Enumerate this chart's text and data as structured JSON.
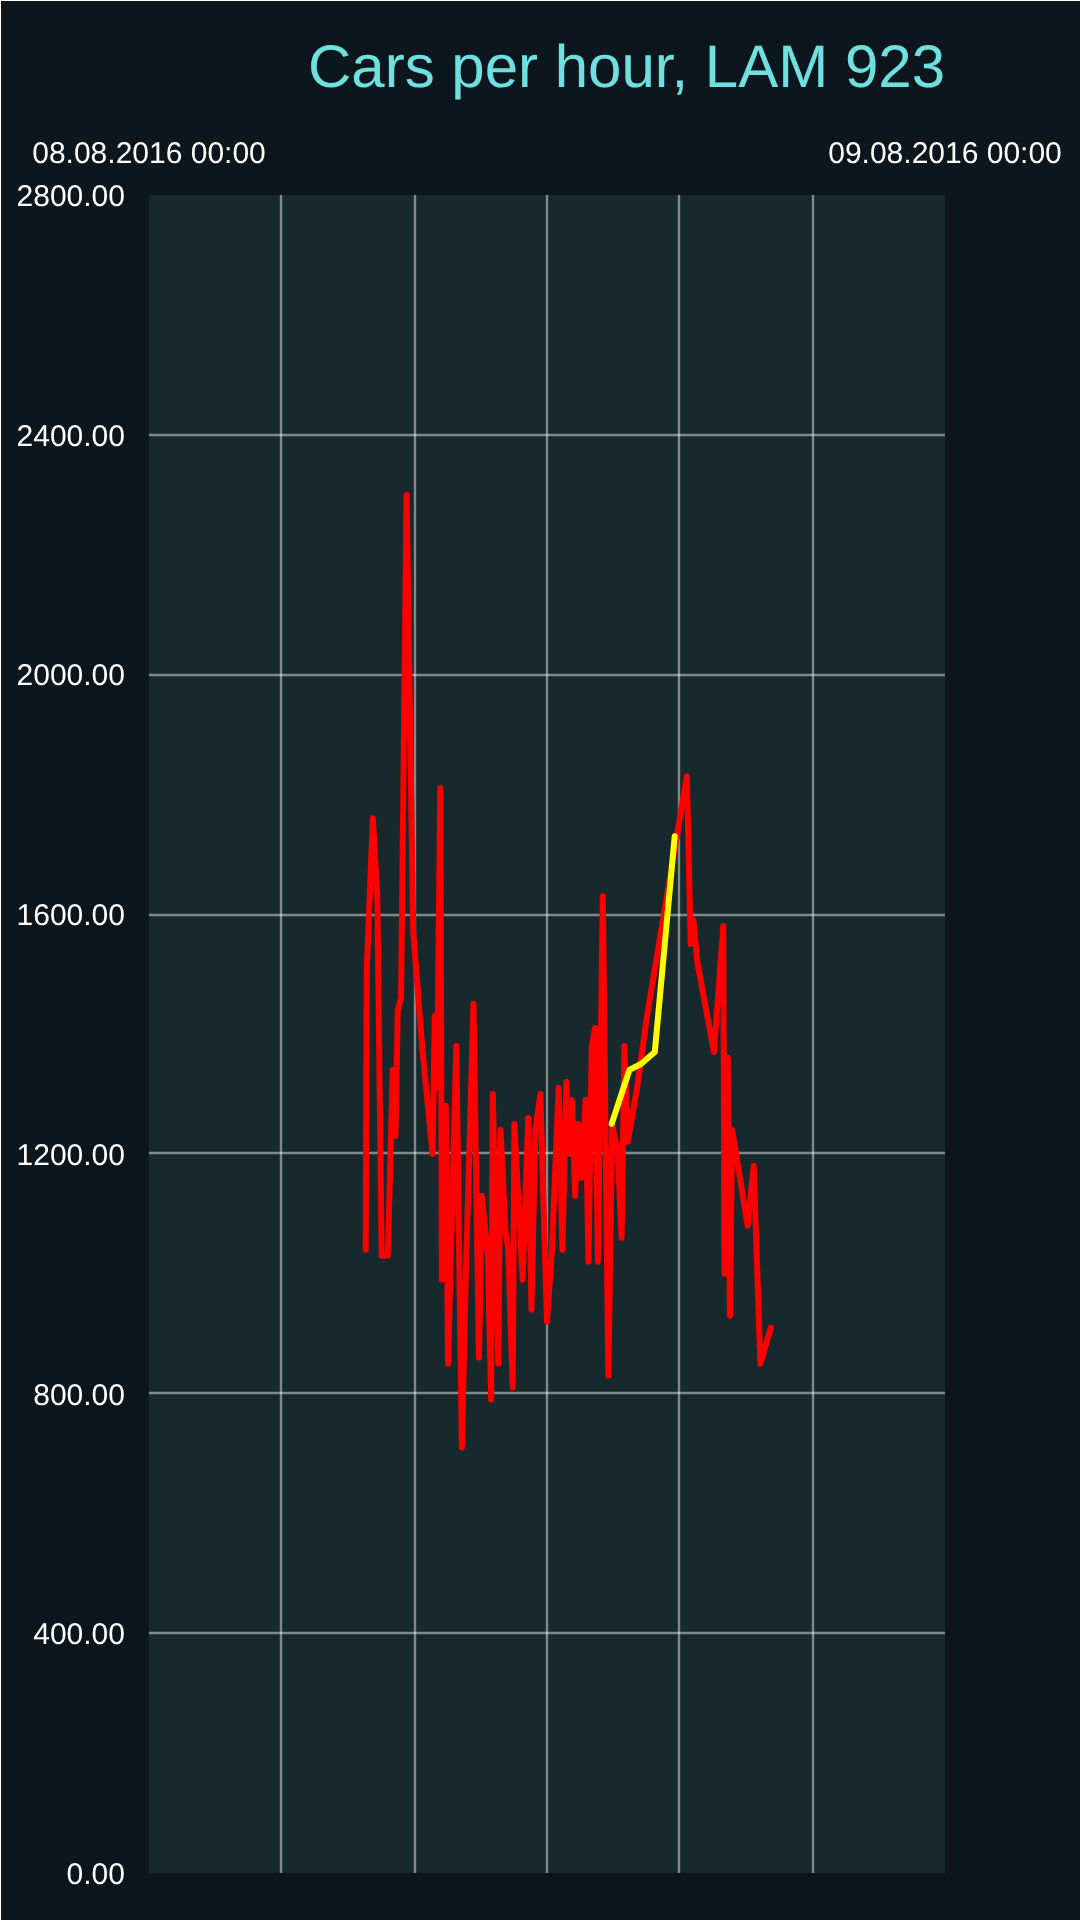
{
  "chart_data": {
    "type": "line",
    "title": "Cars per hour, LAM 923",
    "series": [
      {
        "color": "#ff0000",
        "x": [
          "2016-08-08T06:32",
          "2016-08-08T06:34",
          "2016-08-08T06:45",
          "2016-08-08T06:53",
          "2016-08-08T07:01",
          "2016-08-08T07:12",
          "2016-08-08T07:21",
          "2016-08-08T07:26",
          "2016-08-08T07:30",
          "2016-08-08T07:36",
          "2016-08-08T07:46",
          "2016-08-08T07:58",
          "2016-08-08T08:15",
          "2016-08-08T08:33",
          "2016-08-08T08:37",
          "2016-08-08T08:41",
          "2016-08-08T08:47",
          "2016-08-08T08:50",
          "2016-08-08T08:57",
          "2016-08-08T09:01",
          "2016-08-08T09:16",
          "2016-08-08T09:26",
          "2016-08-08T09:33",
          "2016-08-08T09:47",
          "2016-08-08T09:57",
          "2016-08-08T10:02",
          "2016-08-08T10:13",
          "2016-08-08T10:19",
          "2016-08-08T10:22",
          "2016-08-08T10:32",
          "2016-08-08T10:36",
          "2016-08-08T10:45",
          "2016-08-08T10:50",
          "2016-08-08T10:58",
          "2016-08-08T11:01",
          "2016-08-08T11:16",
          "2016-08-08T11:26",
          "2016-08-08T11:32",
          "2016-08-08T11:39",
          "2016-08-08T11:48",
          "2016-08-08T12:00",
          "2016-08-08T12:09",
          "2016-08-08T12:21",
          "2016-08-08T12:28",
          "2016-08-08T12:35",
          "2016-08-08T12:40",
          "2016-08-08T12:45",
          "2016-08-08T12:51",
          "2016-08-08T12:56",
          "2016-08-08T13:02",
          "2016-08-08T13:10",
          "2016-08-08T13:15",
          "2016-08-08T13:21",
          "2016-08-08T13:27",
          "2016-08-08T13:32",
          "2016-08-08T13:41",
          "2016-08-08T13:51",
          "2016-08-08T13:58",
          "2016-08-08T14:08",
          "2016-08-08T14:15",
          "2016-08-08T14:20",
          "2016-08-08T14:26",
          "2016-08-08T14:43",
          "2016-08-08T15:01",
          "2016-08-08T16:13",
          "2016-08-08T16:20",
          "2016-08-08T16:25",
          "2016-08-08T16:32",
          "2016-08-08T17:02",
          "2016-08-08T17:19",
          "2016-08-08T17:21",
          "2016-08-08T17:27",
          "2016-08-08T17:31",
          "2016-08-08T17:35",
          "2016-08-08T18:03",
          "2016-08-08T18:14",
          "2016-08-08T18:26",
          "2016-08-08T18:45"
        ],
        "values": [
          1040,
          1510,
          1760,
          1630,
          1030,
          1030,
          1340,
          1230,
          1440,
          1460,
          2300,
          1570,
          1370,
          1200,
          1430,
          1310,
          1810,
          990,
          1280,
          850,
          1380,
          710,
          990,
          1450,
          860,
          1130,
          1030,
          790,
          1300,
          850,
          1240,
          1070,
          1040,
          810,
          1250,
          990,
          1260,
          940,
          1240,
          1300,
          920,
          1040,
          1310,
          1040,
          1320,
          1200,
          1290,
          1130,
          1250,
          1160,
          1290,
          1020,
          1380,
          1410,
          1020,
          1630,
          830,
          1250,
          1200,
          1060,
          1380,
          1220,
          1310,
          1430,
          1830,
          1550,
          1590,
          1520,
          1370,
          1580,
          1000,
          1360,
          930,
          1240,
          1080,
          1180,
          850,
          910
        ]
      },
      {
        "color": "#ffff00",
        "x": [
          "2016-08-08T13:57",
          "2016-08-08T14:29",
          "2016-08-08T14:50",
          "2016-08-08T15:15",
          "2016-08-08T15:51"
        ],
        "values": [
          1250,
          1340,
          1350,
          1370,
          1730
        ]
      }
    ],
    "xlim": [
      "2016-08-08T00:00",
      "2016-08-09T00:00"
    ],
    "xticks": [
      {
        "value": "2016-08-08T00:00",
        "label": "08.08.2016 00:00"
      },
      {
        "value": "2016-08-08T04:00",
        "label": null
      },
      {
        "value": "2016-08-08T08:00",
        "label": null
      },
      {
        "value": "2016-08-08T12:00",
        "label": null
      },
      {
        "value": "2016-08-08T16:00",
        "label": null
      },
      {
        "value": "2016-08-08T20:00",
        "label": null
      },
      {
        "value": "2016-08-09T00:00",
        "label": "09.08.2016 00:00"
      }
    ],
    "ylim": [
      0,
      2800
    ],
    "yticks": [
      {
        "value": 0,
        "label": "0.00"
      },
      {
        "value": 400,
        "label": "400.00"
      },
      {
        "value": 800,
        "label": "800.00"
      },
      {
        "value": 1200,
        "label": "1200.00"
      },
      {
        "value": 1600,
        "label": "1600.00"
      },
      {
        "value": 2000,
        "label": "2000.00"
      },
      {
        "value": 2400,
        "label": "2400.00"
      },
      {
        "value": 2800,
        "label": "2800.00"
      }
    ],
    "grid": true,
    "line_style": "solid"
  }
}
